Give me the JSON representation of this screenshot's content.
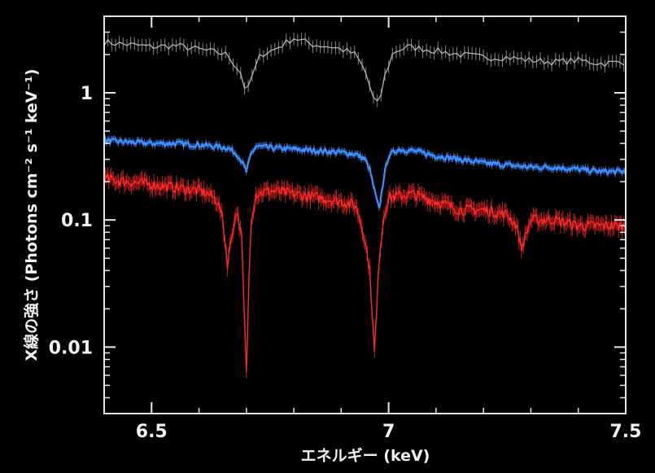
{
  "chart_data": {
    "type": "line",
    "title": "",
    "xlabel": "エネルギー (keV)",
    "ylabel": "X線の強さ (Photons cm⁻² s⁻¹ keV⁻¹)",
    "xlim": [
      6.4,
      7.5
    ],
    "ylim": [
      0.003,
      4.0
    ],
    "yscale": "log",
    "grid": false,
    "legend": "none",
    "x_ticks": [
      {
        "value": 6.5,
        "label": "6.5"
      },
      {
        "value": 7,
        "label": "7"
      },
      {
        "value": 7.5,
        "label": "7.5"
      }
    ],
    "y_ticks": [
      {
        "value": 0.01,
        "label": "0.01"
      },
      {
        "value": 0.1,
        "label": "0.1"
      },
      {
        "value": 1,
        "label": "1"
      }
    ],
    "series": [
      {
        "color": "#b4b4b4",
        "x": [
          6.4,
          6.45,
          6.5,
          6.55,
          6.6,
          6.63,
          6.66,
          6.69,
          6.7,
          6.71,
          6.73,
          6.76,
          6.8,
          6.84,
          6.88,
          6.9,
          6.93,
          6.95,
          6.97,
          6.98,
          6.99,
          7.01,
          7.04,
          7.08,
          7.15,
          7.2,
          7.25,
          7.3,
          7.35,
          7.4,
          7.45,
          7.5
        ],
        "y": [
          2.5,
          2.4,
          2.3,
          2.35,
          2.2,
          2.1,
          2.0,
          1.4,
          0.95,
          1.3,
          2.0,
          2.2,
          2.7,
          2.4,
          2.3,
          2.2,
          2.0,
          1.5,
          0.85,
          0.8,
          1.3,
          2.1,
          2.3,
          2.2,
          2.0,
          1.9,
          1.9,
          1.8,
          1.75,
          1.8,
          1.7,
          1.75
        ]
      },
      {
        "color": "#3f8fff",
        "x": [
          6.4,
          6.45,
          6.5,
          6.55,
          6.6,
          6.63,
          6.66,
          6.68,
          6.69,
          6.7,
          6.71,
          6.72,
          6.75,
          6.8,
          6.85,
          6.9,
          6.93,
          6.95,
          6.96,
          6.97,
          6.98,
          6.99,
          7.0,
          7.02,
          7.05,
          7.1,
          7.15,
          7.2,
          7.25,
          7.3,
          7.35,
          7.4,
          7.45,
          7.5
        ],
        "y": [
          0.42,
          0.41,
          0.4,
          0.4,
          0.39,
          0.38,
          0.37,
          0.33,
          0.29,
          0.24,
          0.33,
          0.38,
          0.37,
          0.36,
          0.35,
          0.34,
          0.33,
          0.3,
          0.25,
          0.17,
          0.12,
          0.22,
          0.32,
          0.36,
          0.35,
          0.32,
          0.3,
          0.28,
          0.27,
          0.26,
          0.26,
          0.25,
          0.24,
          0.24
        ]
      },
      {
        "color": "#ff2a2a",
        "x": [
          6.4,
          6.45,
          6.5,
          6.55,
          6.6,
          6.62,
          6.64,
          6.65,
          6.66,
          6.67,
          6.68,
          6.69,
          6.695,
          6.7,
          6.705,
          6.71,
          6.72,
          6.75,
          6.8,
          6.85,
          6.9,
          6.93,
          6.94,
          6.95,
          6.96,
          6.965,
          6.97,
          6.975,
          6.98,
          6.99,
          7.0,
          7.05,
          7.1,
          7.15,
          7.2,
          7.25,
          7.27,
          7.28,
          7.3,
          7.35,
          7.4,
          7.45,
          7.5
        ],
        "y": [
          0.21,
          0.2,
          0.19,
          0.18,
          0.17,
          0.16,
          0.14,
          0.1,
          0.045,
          0.08,
          0.12,
          0.07,
          0.02,
          0.006,
          0.03,
          0.1,
          0.16,
          0.17,
          0.16,
          0.15,
          0.14,
          0.13,
          0.1,
          0.07,
          0.04,
          0.02,
          0.009,
          0.02,
          0.05,
          0.11,
          0.15,
          0.16,
          0.14,
          0.12,
          0.12,
          0.11,
          0.09,
          0.06,
          0.1,
          0.1,
          0.09,
          0.09,
          0.09
        ]
      }
    ]
  }
}
